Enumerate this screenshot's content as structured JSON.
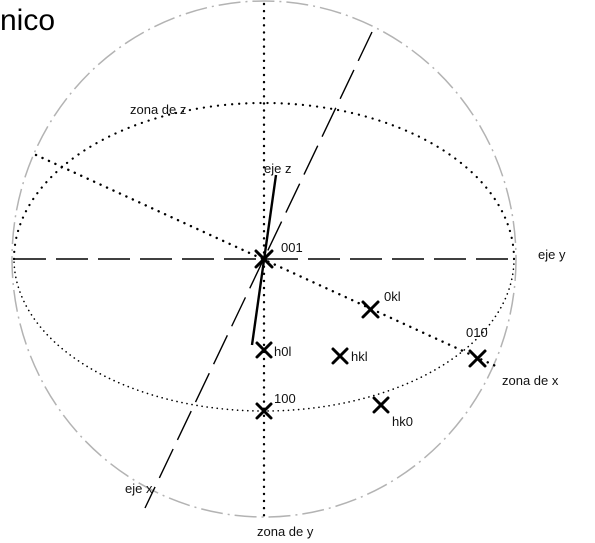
{
  "title_fragment": "nico",
  "labels": {
    "zona_z": "zona de z",
    "eje_z": "eje z",
    "eje_y": "eje y",
    "eje_x": "eje x",
    "zona_x": "zona de x",
    "zona_y": "zona de y"
  },
  "poles": {
    "p001": "001",
    "p0kl": "0kl",
    "p010": "010",
    "ph0l": "h0l",
    "phkl": "hkl",
    "p100": "100",
    "phk0": "hk0"
  },
  "colors": {
    "primitive_circle": "#b3b3b3",
    "lines": "#000000",
    "text": "#111111"
  },
  "line_styles": {
    "primitive_circle": "dash-dot",
    "zones": "dotted",
    "crystal_axes": "dashed",
    "eje_z": "solid"
  },
  "pole_marker": "cross"
}
